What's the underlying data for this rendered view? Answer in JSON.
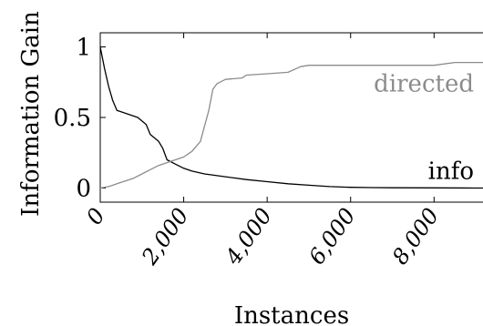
{
  "chart_data": {
    "type": "line",
    "xlabel": "Instances",
    "ylabel": "Information Gain",
    "xlim": [
      0,
      9500
    ],
    "ylim": [
      -0.1,
      1.1
    ],
    "x_ticks": [
      0,
      2000,
      4000,
      6000,
      8000
    ],
    "x_tick_labels": [
      "0",
      "2,000",
      "4,000",
      "6,000",
      "8,000"
    ],
    "y_ticks": [
      0,
      0.5,
      1
    ],
    "y_tick_labels": [
      "0",
      "0.5",
      "1"
    ],
    "grid": false,
    "series": [
      {
        "name": "info",
        "color": "#000000",
        "x": [
          0,
          100,
          200,
          300,
          400,
          500,
          700,
          900,
          1100,
          1200,
          1400,
          1500,
          1600,
          1800,
          2000,
          2200,
          2500,
          3000,
          3500,
          4000,
          4500,
          5000,
          5500,
          6000,
          6500,
          7000,
          8000,
          9000,
          9500
        ],
        "y": [
          1.0,
          0.85,
          0.72,
          0.62,
          0.55,
          0.54,
          0.52,
          0.5,
          0.45,
          0.38,
          0.33,
          0.28,
          0.2,
          0.17,
          0.14,
          0.12,
          0.1,
          0.08,
          0.06,
          0.045,
          0.03,
          0.02,
          0.01,
          0.005,
          0.003,
          0.002,
          0.001,
          0.0,
          0.0
        ]
      },
      {
        "name": "directed",
        "color": "#8c8c8c",
        "x": [
          0,
          200,
          400,
          600,
          800,
          1000,
          1200,
          1400,
          1600,
          1800,
          2000,
          2200,
          2400,
          2600,
          2700,
          2800,
          3000,
          3400,
          3500,
          4000,
          4500,
          4800,
          5000,
          5500,
          6000,
          7000,
          8000,
          8500,
          9000,
          9500
        ],
        "y": [
          0.0,
          0.01,
          0.03,
          0.05,
          0.07,
          0.1,
          0.13,
          0.16,
          0.18,
          0.2,
          0.22,
          0.26,
          0.33,
          0.55,
          0.7,
          0.74,
          0.77,
          0.78,
          0.8,
          0.81,
          0.82,
          0.86,
          0.87,
          0.87,
          0.87,
          0.87,
          0.87,
          0.89,
          0.89,
          0.89
        ]
      }
    ]
  }
}
